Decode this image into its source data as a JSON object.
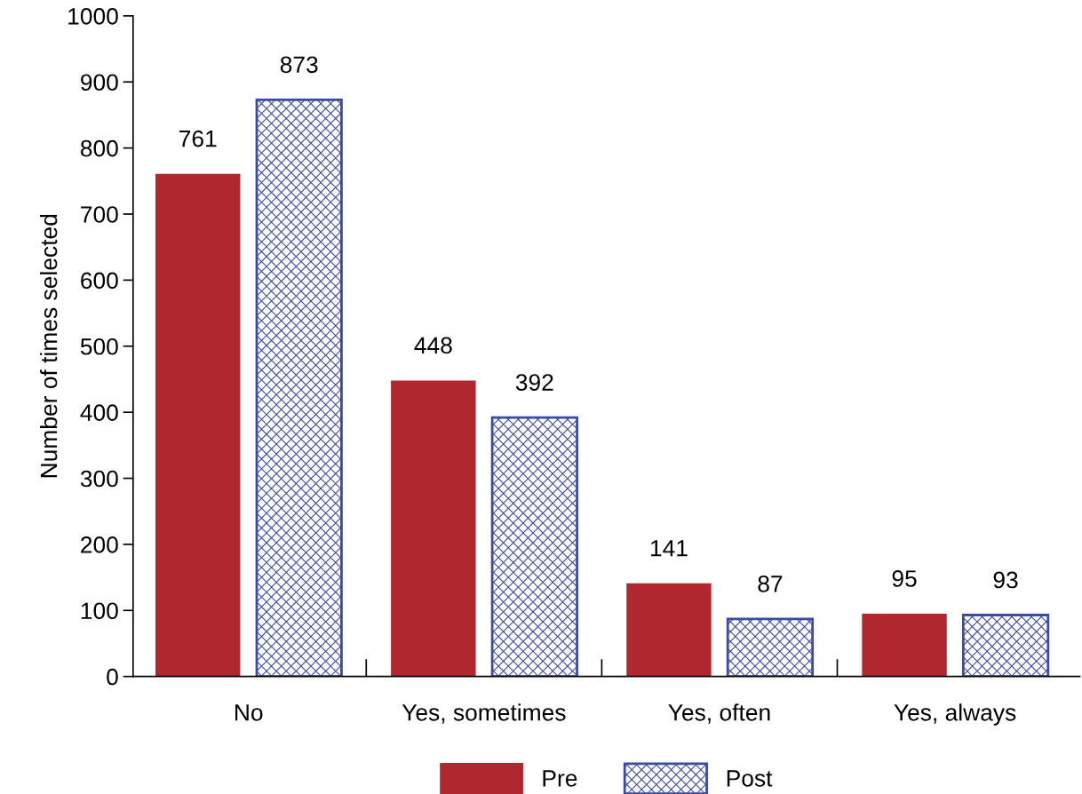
{
  "chart_data": {
    "type": "bar",
    "ylabel": "Number of times selected",
    "categories": [
      "No",
      "Yes, sometimes",
      "Yes, often",
      "Yes, always"
    ],
    "series": [
      {
        "name": "Pre",
        "color": "#b0272e",
        "values": [
          761,
          448,
          141,
          95
        ]
      },
      {
        "name": "Post",
        "color": "#3b4aa3",
        "values": [
          873,
          392,
          87,
          93
        ]
      }
    ],
    "ylim": [
      0,
      1000
    ],
    "yticks": [
      0,
      100,
      200,
      300,
      400,
      500,
      600,
      700,
      800,
      900,
      1000
    ],
    "data_labels": true,
    "grid": false,
    "legend": "bottom"
  }
}
